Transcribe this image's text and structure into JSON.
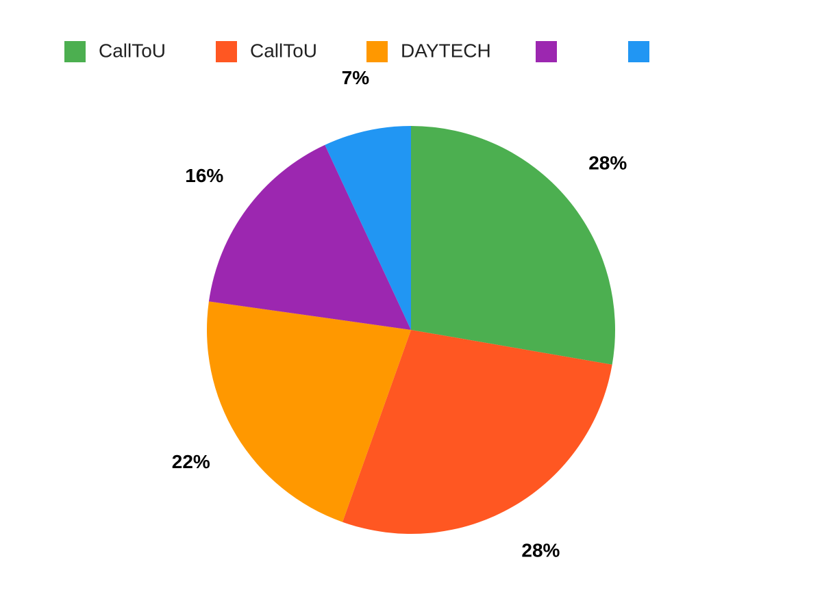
{
  "chart_data": {
    "type": "pie",
    "categories": [
      "CallToU",
      "CallToU",
      "DAYTECH",
      null,
      null
    ],
    "values": [
      28,
      28,
      22,
      16,
      7
    ],
    "value_labels": [
      "28%",
      "28%",
      "22%",
      "16%",
      "7%"
    ],
    "colors": [
      "#4caf50",
      "#ff5722",
      "#ff9800",
      "#9c27b0",
      "#2196f3"
    ],
    "legend": "top"
  }
}
